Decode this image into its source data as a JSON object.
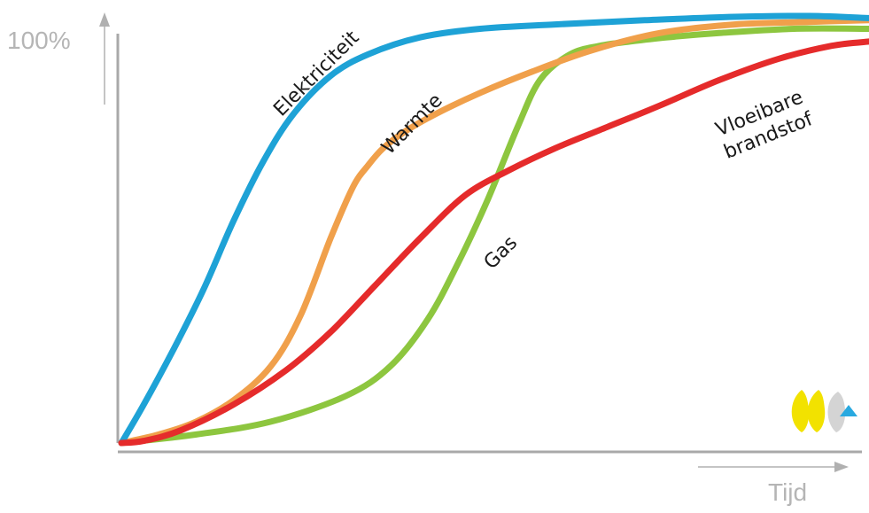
{
  "chart_data": {
    "type": "line",
    "title": "",
    "xlabel": "Tijd",
    "ylabel": "100%",
    "xlim": [
      0,
      100
    ],
    "ylim": [
      0,
      100
    ],
    "grid": false,
    "series": [
      {
        "name": "Elektriciteit",
        "color": "#1ea2d6",
        "x": [
          0,
          3,
          7,
          11,
          15,
          19,
          23,
          28,
          33,
          40,
          48,
          58,
          70,
          82,
          92,
          100
        ],
        "y": [
          0,
          9,
          22,
          36,
          52,
          66,
          77,
          86,
          91,
          95,
          97,
          98,
          99,
          99.8,
          100,
          99.5
        ]
      },
      {
        "name": "Warmte",
        "color": "#f0a04b",
        "x": [
          0,
          5,
          10,
          15,
          20,
          24,
          28,
          31,
          33,
          35,
          38,
          42,
          48,
          55,
          63,
          72,
          82,
          92,
          100
        ],
        "y": [
          0,
          2,
          5,
          10,
          18,
          30,
          48,
          60,
          65,
          69,
          73,
          77,
          82,
          87,
          92,
          96,
          98,
          98.6,
          99
        ]
      },
      {
        "name": "Gas",
        "color": "#8dc63f",
        "x": [
          0,
          10,
          20,
          30,
          36,
          41,
          45,
          49,
          53,
          56,
          60,
          64,
          68,
          73,
          80,
          90,
          100
        ],
        "y": [
          0,
          2,
          5,
          11,
          18,
          29,
          42,
          57,
          74,
          85,
          91,
          93,
          94,
          95,
          96,
          97,
          97
        ]
      },
      {
        "name": "Vloeibare brandstof",
        "color": "#e52b2b",
        "x": [
          0,
          3,
          8,
          15,
          22,
          28,
          34,
          40,
          46,
          52,
          58,
          65,
          72,
          80,
          88,
          95,
          100
        ],
        "y": [
          0,
          0.5,
          3,
          9,
          17,
          26,
          37,
          48,
          58,
          64,
          69,
          74,
          79,
          85,
          90,
          93,
          94
        ]
      }
    ],
    "annotations": [
      {
        "series": "Elektriciteit",
        "text": "Elektriciteit"
      },
      {
        "series": "Warmte",
        "text": "Warmte"
      },
      {
        "series": "Gas",
        "text": "Gas"
      },
      {
        "series": "Vloeibare brandstof",
        "lines": [
          "Vloeibare",
          "brandstof"
        ]
      }
    ],
    "axis_color": "#a9a9a9"
  },
  "logo": {
    "name": "yellow-wave-logo-icon",
    "colors": [
      "#f2e200",
      "#c9c9c9",
      "#29a9e0"
    ]
  }
}
